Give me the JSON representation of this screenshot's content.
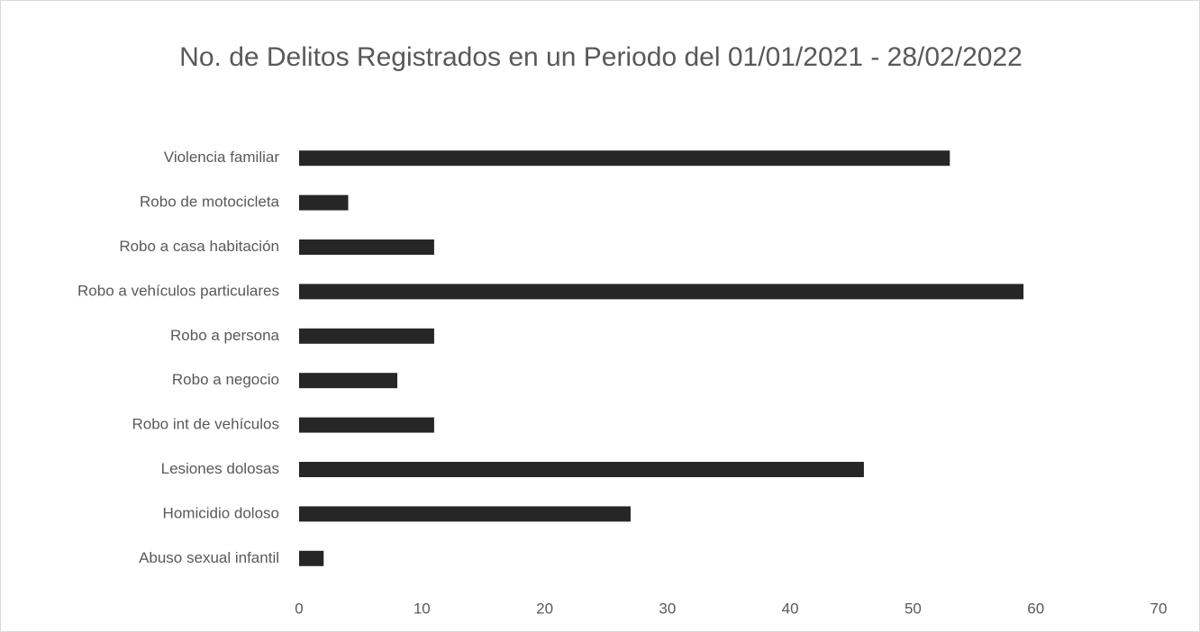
{
  "chart_data": {
    "type": "barh",
    "title": "No. de Delitos Registrados en un Periodo del 01/01/2021 - 28/02/2022",
    "categories": [
      "Violencia familiar",
      "Robo de motocicleta",
      "Robo a casa habitación",
      "Robo a vehículos particulares",
      "Robo a persona",
      "Robo a negocio",
      "Robo int de vehículos",
      "Lesiones dolosas",
      "Homicidio doloso",
      "Abuso sexual infantil"
    ],
    "values": [
      53,
      4,
      11,
      59,
      11,
      8,
      11,
      46,
      27,
      2
    ],
    "color": "#262626",
    "xlim": [
      0,
      70
    ],
    "xticks": [
      0,
      10,
      20,
      30,
      40,
      50,
      60,
      70
    ],
    "grid": false
  }
}
